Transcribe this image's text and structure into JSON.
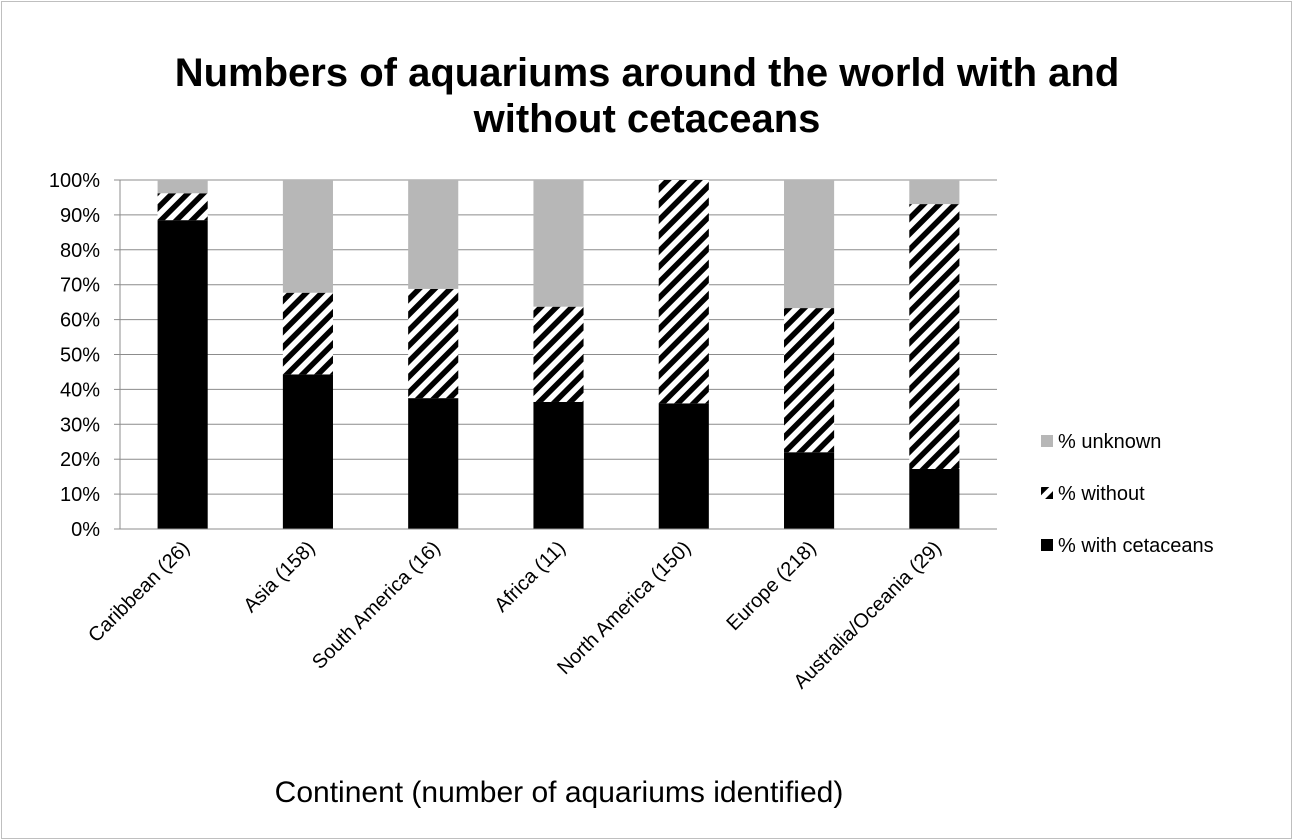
{
  "chart_data": {
    "type": "bar",
    "stacked": true,
    "title_lines": [
      "Numbers of aquariums around the world with and",
      "without cetaceans"
    ],
    "xlabel": "Continent (number of aquariums identified)",
    "ylabel": "",
    "ylim": [
      0,
      100
    ],
    "y_ticks": [
      "0%",
      "10%",
      "20%",
      "30%",
      "40%",
      "50%",
      "60%",
      "70%",
      "80%",
      "90%",
      "100%"
    ],
    "grid": true,
    "legend_position": "right",
    "categories": [
      "Caribbean (26)",
      "Asia (158)",
      "South America (16)",
      "Africa (11)",
      "North America (150)",
      "Europe (218)",
      "Australia/Oceania (29)"
    ],
    "series": [
      {
        "name": "% with cetaceans",
        "color": "#000000",
        "pattern": "solid",
        "values": [
          88.5,
          44.3,
          37.5,
          36.4,
          36.0,
          22.0,
          17.2
        ]
      },
      {
        "name": "% without",
        "color": "#000000",
        "pattern": "diagonal-hatch",
        "values": [
          7.7,
          23.4,
          31.3,
          27.3,
          64.0,
          41.3,
          75.9
        ]
      },
      {
        "name": "% unknown",
        "color": "#b7b7b7",
        "pattern": "solid",
        "values": [
          3.8,
          32.3,
          31.2,
          36.3,
          0.0,
          36.7,
          6.9
        ]
      }
    ],
    "legend_order": [
      "% unknown",
      "% without",
      "% with cetaceans"
    ]
  }
}
